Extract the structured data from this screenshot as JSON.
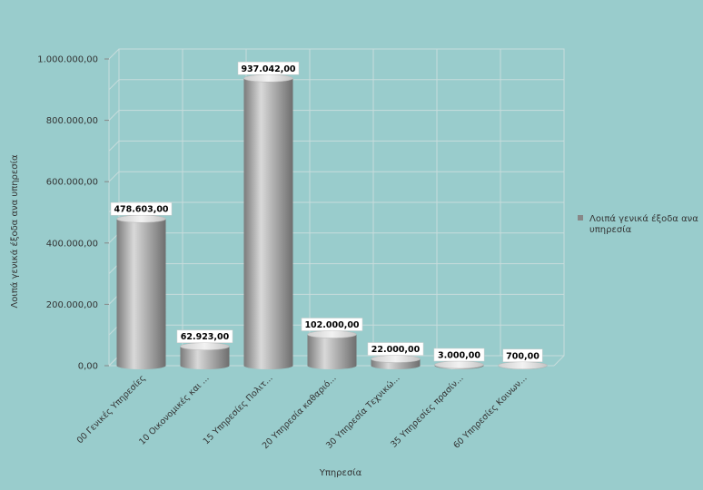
{
  "chart_data": {
    "type": "bar",
    "style": "3d-cylinder",
    "categories": [
      "00 Γενικές Υπηρεσίες",
      "10 Οικονομικές και ...",
      "15 Υπηρεσίες Πολιτ...",
      "20 Υπηρεσία καθαριό...",
      "30 Υπηρεσία Τεχνικώ...",
      "35 Υπηρεσίες πρασίν...",
      "60 Υπηρεσίες Κοινων..."
    ],
    "series": [
      {
        "name": "Λοιπά γενικά έξοδα ανα υπηρεσία",
        "values": [
          478603,
          62923,
          937042,
          102000,
          22000,
          3000,
          700
        ],
        "labels": [
          "478.603,00",
          "62.923,00",
          "937.042,00",
          "102.000,00",
          "22.000,00",
          "3.000,00",
          "700,00"
        ]
      }
    ],
    "ylim": [
      0,
      1000000
    ],
    "yticks": [
      0,
      200000,
      400000,
      600000,
      800000,
      1000000
    ],
    "ytick_labels": [
      "0,00",
      "200.000,00",
      "400.000,00",
      "600.000,00",
      "800.000,00",
      "1.000.000,00"
    ],
    "xlabel": "Υπηρεσία",
    "ylabel": "Λοιπά γενικά έξοδα ανα υπηρεσία",
    "grid": true,
    "legend": "right",
    "colors": {
      "background": "#99cccc",
      "grid": "#c8dcdc",
      "bar": "#9a9a9a",
      "legend_marker": "#888888"
    }
  }
}
